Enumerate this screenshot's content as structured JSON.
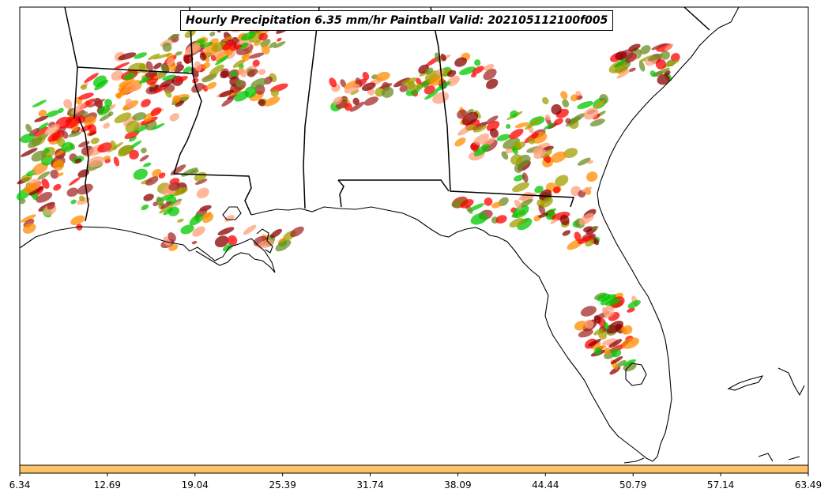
{
  "title": "Hourly Precipitation 6.35 mm/hr Paintball Valid: 202105112100f005",
  "colorbar": {
    "color": "#ffc266",
    "ticks": [
      "6.34",
      "12.69",
      "19.04",
      "25.39",
      "31.74",
      "38.09",
      "44.44",
      "50.79",
      "57.14",
      "63.49"
    ]
  },
  "paintball_colors": [
    "#ff8c00",
    "#ff0000",
    "#00c800",
    "#8b0000",
    "#6b8e23",
    "#a0a000",
    "#ffa07a",
    "#a52a2a"
  ]
}
